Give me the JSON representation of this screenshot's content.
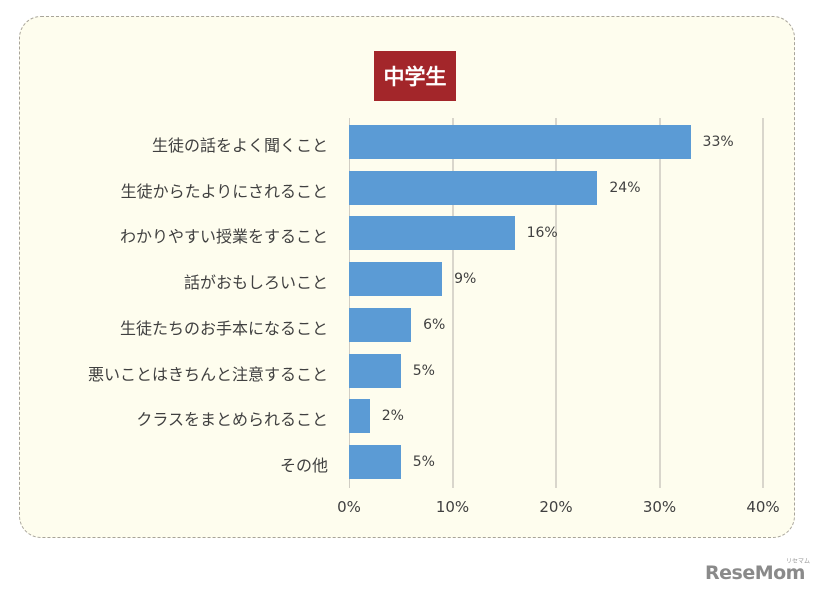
{
  "chart_data": {
    "type": "bar",
    "orientation": "horizontal",
    "title": "中学生",
    "categories": [
      "生徒の話をよく聞くこと",
      "生徒からたよりにされること",
      "わかりやすい授業をすること",
      "話がおもしろいこと",
      "生徒たちのお手本になること",
      "悪いことはきちんと注意すること",
      "クラスをまとめられること",
      "その他"
    ],
    "values": [
      33,
      24,
      16,
      9,
      6,
      5,
      2,
      5
    ],
    "value_labels": [
      "33%",
      "24%",
      "16%",
      "9%",
      "6%",
      "5%",
      "2%",
      "5%"
    ],
    "xlabel": "",
    "ylabel": "",
    "xlim": [
      0,
      40
    ],
    "x_ticks": [
      "0%",
      "10%",
      "20%",
      "30%",
      "40%"
    ],
    "grid": "vertical",
    "legend": "none",
    "bar_color": "#5b9bd5"
  },
  "title_badge": {
    "label": "中学生",
    "color": "#a3262a"
  },
  "watermark": {
    "brand": "ReseMom",
    "sub": "リセマム"
  }
}
